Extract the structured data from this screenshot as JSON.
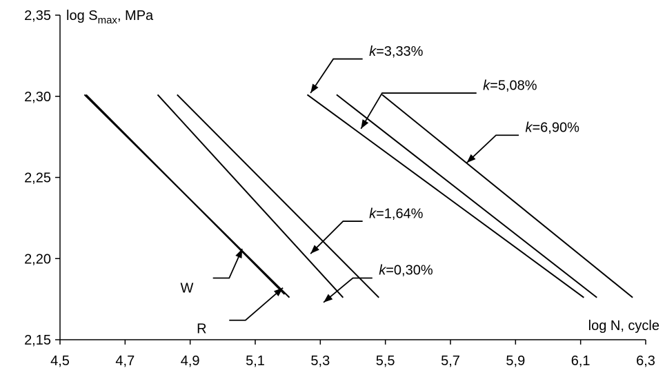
{
  "chart_data": {
    "type": "line",
    "title": "",
    "xlabel": "log N, cycle",
    "ylabel_main": "log S",
    "ylabel_sub": "max",
    "ylabel_unit": ", MPa",
    "xlim": [
      4.5,
      6.3
    ],
    "ylim": [
      2.15,
      2.35
    ],
    "xticks": [
      "4,5",
      "4,7",
      "4,9",
      "5,1",
      "5,3",
      "5,5",
      "5,7",
      "5,9",
      "6,1",
      "6,3"
    ],
    "yticks": [
      "2,15",
      "2,20",
      "2,25",
      "2,30",
      "2,35"
    ],
    "grid": false,
    "series": [
      {
        "name": "W",
        "x": [
          4.575,
          5.205
        ],
        "y": [
          2.301,
          2.176
        ]
      },
      {
        "name": "R",
        "x": [
          4.58,
          5.19
        ],
        "y": [
          2.301,
          2.178
        ]
      },
      {
        "name": "k=1,64%",
        "x": [
          4.8,
          5.37
        ],
        "y": [
          2.301,
          2.176
        ]
      },
      {
        "name": "k=0,30%",
        "x": [
          4.86,
          5.48
        ],
        "y": [
          2.301,
          2.176
        ]
      },
      {
        "name": "k=3,33%",
        "x": [
          5.26,
          6.11
        ],
        "y": [
          2.301,
          2.176
        ]
      },
      {
        "name": "k=5,08%",
        "x": [
          5.35,
          6.15
        ],
        "y": [
          2.301,
          2.176
        ]
      },
      {
        "name": "k=6,90%",
        "x": [
          5.49,
          6.26
        ],
        "y": [
          2.301,
          2.176
        ]
      }
    ],
    "annotations": [
      {
        "k": "k",
        "v": "=3,33%",
        "text_x": 5.45,
        "text_y": 2.328,
        "tail": [
          5.43,
          2.323
        ],
        "bend": [
          5.34,
          2.323
        ],
        "tip": [
          5.27,
          2.302
        ]
      },
      {
        "k": "k",
        "v": "=5,08%",
        "text_x": 5.8,
        "text_y": 2.307,
        "tail": [
          5.78,
          2.302
        ],
        "bend": [
          5.49,
          2.302
        ],
        "tip": [
          5.425,
          2.28
        ]
      },
      {
        "k": "k",
        "v": "=6,90%",
        "text_x": 5.93,
        "text_y": 2.281,
        "tail": [
          5.91,
          2.276
        ],
        "bend": [
          5.84,
          2.276
        ],
        "tip": [
          5.75,
          2.259
        ]
      },
      {
        "k": "k",
        "v": "=1,64%",
        "text_x": 5.45,
        "text_y": 2.228,
        "tail": [
          5.43,
          2.223
        ],
        "bend": [
          5.37,
          2.223
        ],
        "tip": [
          5.27,
          2.203
        ]
      },
      {
        "k": "k",
        "v": "=0,30%",
        "text_x": 5.48,
        "text_y": 2.193,
        "tail": [
          5.46,
          2.188
        ],
        "bend": [
          5.4,
          2.188
        ],
        "tip": [
          5.31,
          2.173
        ]
      },
      {
        "k": "",
        "v": "W",
        "text_x": 4.87,
        "text_y": 2.182,
        "tail": [
          4.97,
          2.188
        ],
        "bend": [
          5.02,
          2.188
        ],
        "tip": [
          5.06,
          2.206
        ]
      },
      {
        "k": "",
        "v": "R",
        "text_x": 4.92,
        "text_y": 2.157,
        "tail": [
          5.02,
          2.162
        ],
        "bend": [
          5.07,
          2.162
        ],
        "tip": [
          5.185,
          2.182
        ]
      }
    ]
  }
}
